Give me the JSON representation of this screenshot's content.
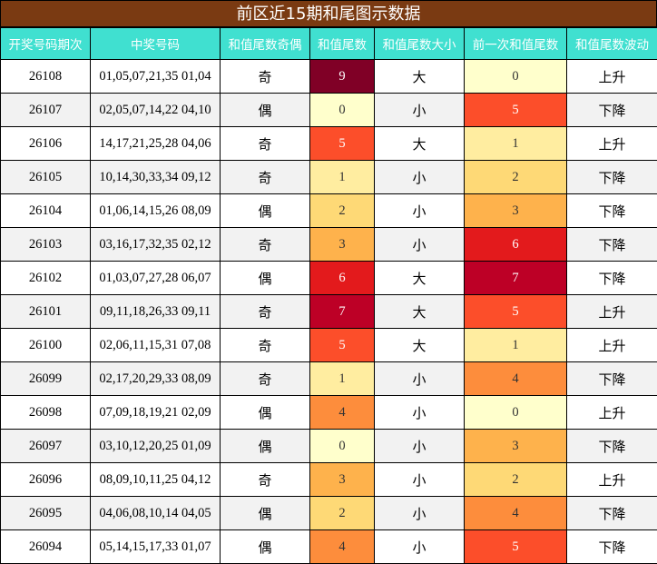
{
  "title": "前区近15期和尾图示数据",
  "columns": [
    "开奖号码期次",
    "中奖号码",
    "和值尾数奇偶",
    "和值尾数",
    "和值尾数大小",
    "前一次和值尾数",
    "和值尾数波动"
  ],
  "heat_colors": {
    "0": "#ffffcc",
    "1": "#ffeda0",
    "2": "#fed976",
    "3": "#feb24c",
    "4": "#fd8d3c",
    "5": "#fc4e2a",
    "6": "#e31a1c",
    "7": "#bd0026",
    "8": "#a00026",
    "9": "#800026"
  },
  "rows": [
    {
      "period": "26108",
      "numbers": "01,05,07,21,35 01,04",
      "parity": "奇",
      "tail": 9,
      "size": "大",
      "prev_tail": 0,
      "trend": "上升"
    },
    {
      "period": "26107",
      "numbers": "02,05,07,14,22 04,10",
      "parity": "偶",
      "tail": 0,
      "size": "小",
      "prev_tail": 5,
      "trend": "下降"
    },
    {
      "period": "26106",
      "numbers": "14,17,21,25,28 04,06",
      "parity": "奇",
      "tail": 5,
      "size": "大",
      "prev_tail": 1,
      "trend": "上升"
    },
    {
      "period": "26105",
      "numbers": "10,14,30,33,34 09,12",
      "parity": "奇",
      "tail": 1,
      "size": "小",
      "prev_tail": 2,
      "trend": "下降"
    },
    {
      "period": "26104",
      "numbers": "01,06,14,15,26 08,09",
      "parity": "偶",
      "tail": 2,
      "size": "小",
      "prev_tail": 3,
      "trend": "下降"
    },
    {
      "period": "26103",
      "numbers": "03,16,17,32,35 02,12",
      "parity": "奇",
      "tail": 3,
      "size": "小",
      "prev_tail": 6,
      "trend": "下降"
    },
    {
      "period": "26102",
      "numbers": "01,03,07,27,28 06,07",
      "parity": "偶",
      "tail": 6,
      "size": "大",
      "prev_tail": 7,
      "trend": "下降"
    },
    {
      "period": "26101",
      "numbers": "09,11,18,26,33 09,11",
      "parity": "奇",
      "tail": 7,
      "size": "大",
      "prev_tail": 5,
      "trend": "上升"
    },
    {
      "period": "26100",
      "numbers": "02,06,11,15,31 07,08",
      "parity": "奇",
      "tail": 5,
      "size": "大",
      "prev_tail": 1,
      "trend": "上升"
    },
    {
      "period": "26099",
      "numbers": "02,17,20,29,33 08,09",
      "parity": "奇",
      "tail": 1,
      "size": "小",
      "prev_tail": 4,
      "trend": "下降"
    },
    {
      "period": "26098",
      "numbers": "07,09,18,19,21 02,09",
      "parity": "偶",
      "tail": 4,
      "size": "小",
      "prev_tail": 0,
      "trend": "上升"
    },
    {
      "period": "26097",
      "numbers": "03,10,12,20,25 01,09",
      "parity": "偶",
      "tail": 0,
      "size": "小",
      "prev_tail": 3,
      "trend": "下降"
    },
    {
      "period": "26096",
      "numbers": "08,09,10,11,25 04,12",
      "parity": "奇",
      "tail": 3,
      "size": "小",
      "prev_tail": 2,
      "trend": "上升"
    },
    {
      "period": "26095",
      "numbers": "04,06,08,10,14 04,05",
      "parity": "偶",
      "tail": 2,
      "size": "小",
      "prev_tail": 4,
      "trend": "下降"
    },
    {
      "period": "26094",
      "numbers": "05,14,15,17,33 01,07",
      "parity": "偶",
      "tail": 4,
      "size": "小",
      "prev_tail": 5,
      "trend": "下降"
    }
  ]
}
